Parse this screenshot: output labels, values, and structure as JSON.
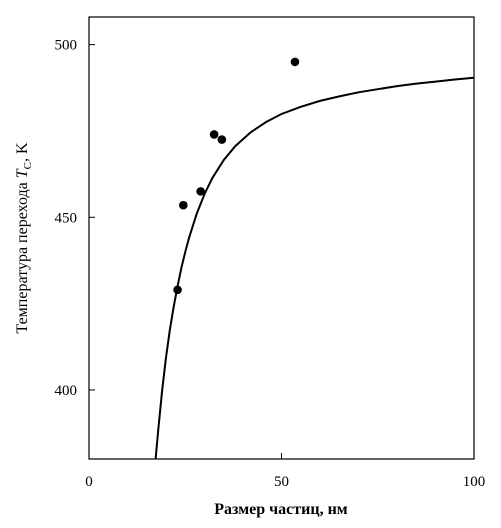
{
  "chart_data": {
    "type": "scatter",
    "title": "",
    "xlabel": "Размер частиц, нм",
    "ylabel_parts": {
      "main": "Температура перехода ",
      "symbol": "T",
      "subscript": "C",
      "suffix": ", K"
    },
    "xlim": [
      0,
      100
    ],
    "ylim": [
      380,
      508
    ],
    "x_ticks": [
      0,
      50,
      100
    ],
    "x_tick_labels": [
      "0",
      "50",
      "100"
    ],
    "y_ticks": [
      400,
      450,
      500
    ],
    "y_tick_labels": [
      "400",
      "450",
      "500"
    ],
    "grid": false,
    "legend": "none",
    "series": [
      {
        "kind": "points",
        "x": [
          23,
          24.5,
          29,
          32.5,
          34.5,
          53.5
        ],
        "y": [
          429,
          453.5,
          457.5,
          474,
          472.5,
          495
        ]
      },
      {
        "kind": "curve",
        "x": [
          17.3,
          18,
          19,
          20,
          21,
          22,
          23,
          24,
          25,
          26,
          28,
          30,
          32,
          35,
          38,
          42,
          46,
          50,
          55,
          60,
          65,
          70,
          75,
          80,
          85,
          90,
          95,
          100
        ],
        "y": [
          380,
          388.6,
          400.0,
          409.4,
          417.3,
          424.1,
          430.1,
          435.4,
          440.0,
          444.1,
          451.1,
          456.7,
          461.3,
          466.6,
          470.6,
          474.6,
          477.6,
          479.9,
          482.0,
          483.7,
          485.0,
          486.2,
          487.1,
          488.0,
          488.7,
          489.3,
          489.9,
          490.4
        ]
      }
    ],
    "colors": {
      "axis": "#000000",
      "marker": "#000000",
      "curve": "#000000"
    }
  }
}
